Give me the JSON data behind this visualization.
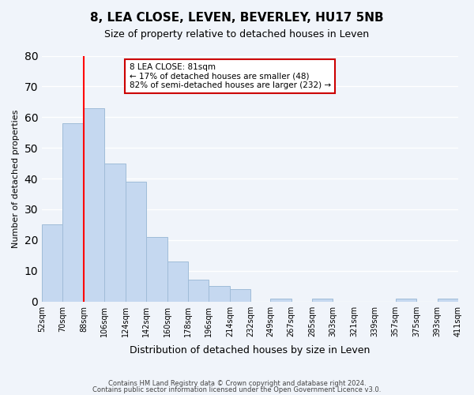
{
  "title": "8, LEA CLOSE, LEVEN, BEVERLEY, HU17 5NB",
  "subtitle": "Size of property relative to detached houses in Leven",
  "xlabel": "Distribution of detached houses by size in Leven",
  "ylabel": "Number of detached properties",
  "bar_color": "#c5d8f0",
  "bar_edgecolor": "#a0bcd8",
  "redline_x": 88,
  "bins": [
    52,
    70,
    88,
    106,
    124,
    142,
    160,
    178,
    196,
    214,
    232,
    249,
    267,
    285,
    303,
    321,
    339,
    357,
    375,
    393,
    411
  ],
  "counts": [
    25,
    58,
    63,
    45,
    39,
    21,
    13,
    7,
    5,
    4,
    0,
    1,
    0,
    1,
    0,
    0,
    0,
    1,
    0,
    1
  ],
  "tick_labels": [
    "52sqm",
    "70sqm",
    "88sqm",
    "106sqm",
    "124sqm",
    "142sqm",
    "160sqm",
    "178sqm",
    "196sqm",
    "214sqm",
    "232sqm",
    "249sqm",
    "267sqm",
    "285sqm",
    "303sqm",
    "321sqm",
    "339sqm",
    "357sqm",
    "375sqm",
    "393sqm",
    "411sqm"
  ],
  "ylim": [
    0,
    80
  ],
  "yticks": [
    0,
    10,
    20,
    30,
    40,
    50,
    60,
    70,
    80
  ],
  "annotation_title": "8 LEA CLOSE: 81sqm",
  "annotation_line1": "← 17% of detached houses are smaller (48)",
  "annotation_line2": "82% of semi-detached houses are larger (232) →",
  "annotation_box_color": "#ffffff",
  "annotation_box_edgecolor": "#cc0000",
  "footer_line1": "Contains HM Land Registry data © Crown copyright and database right 2024.",
  "footer_line2": "Contains public sector information licensed under the Open Government Licence v3.0.",
  "background_color": "#f0f4fa"
}
